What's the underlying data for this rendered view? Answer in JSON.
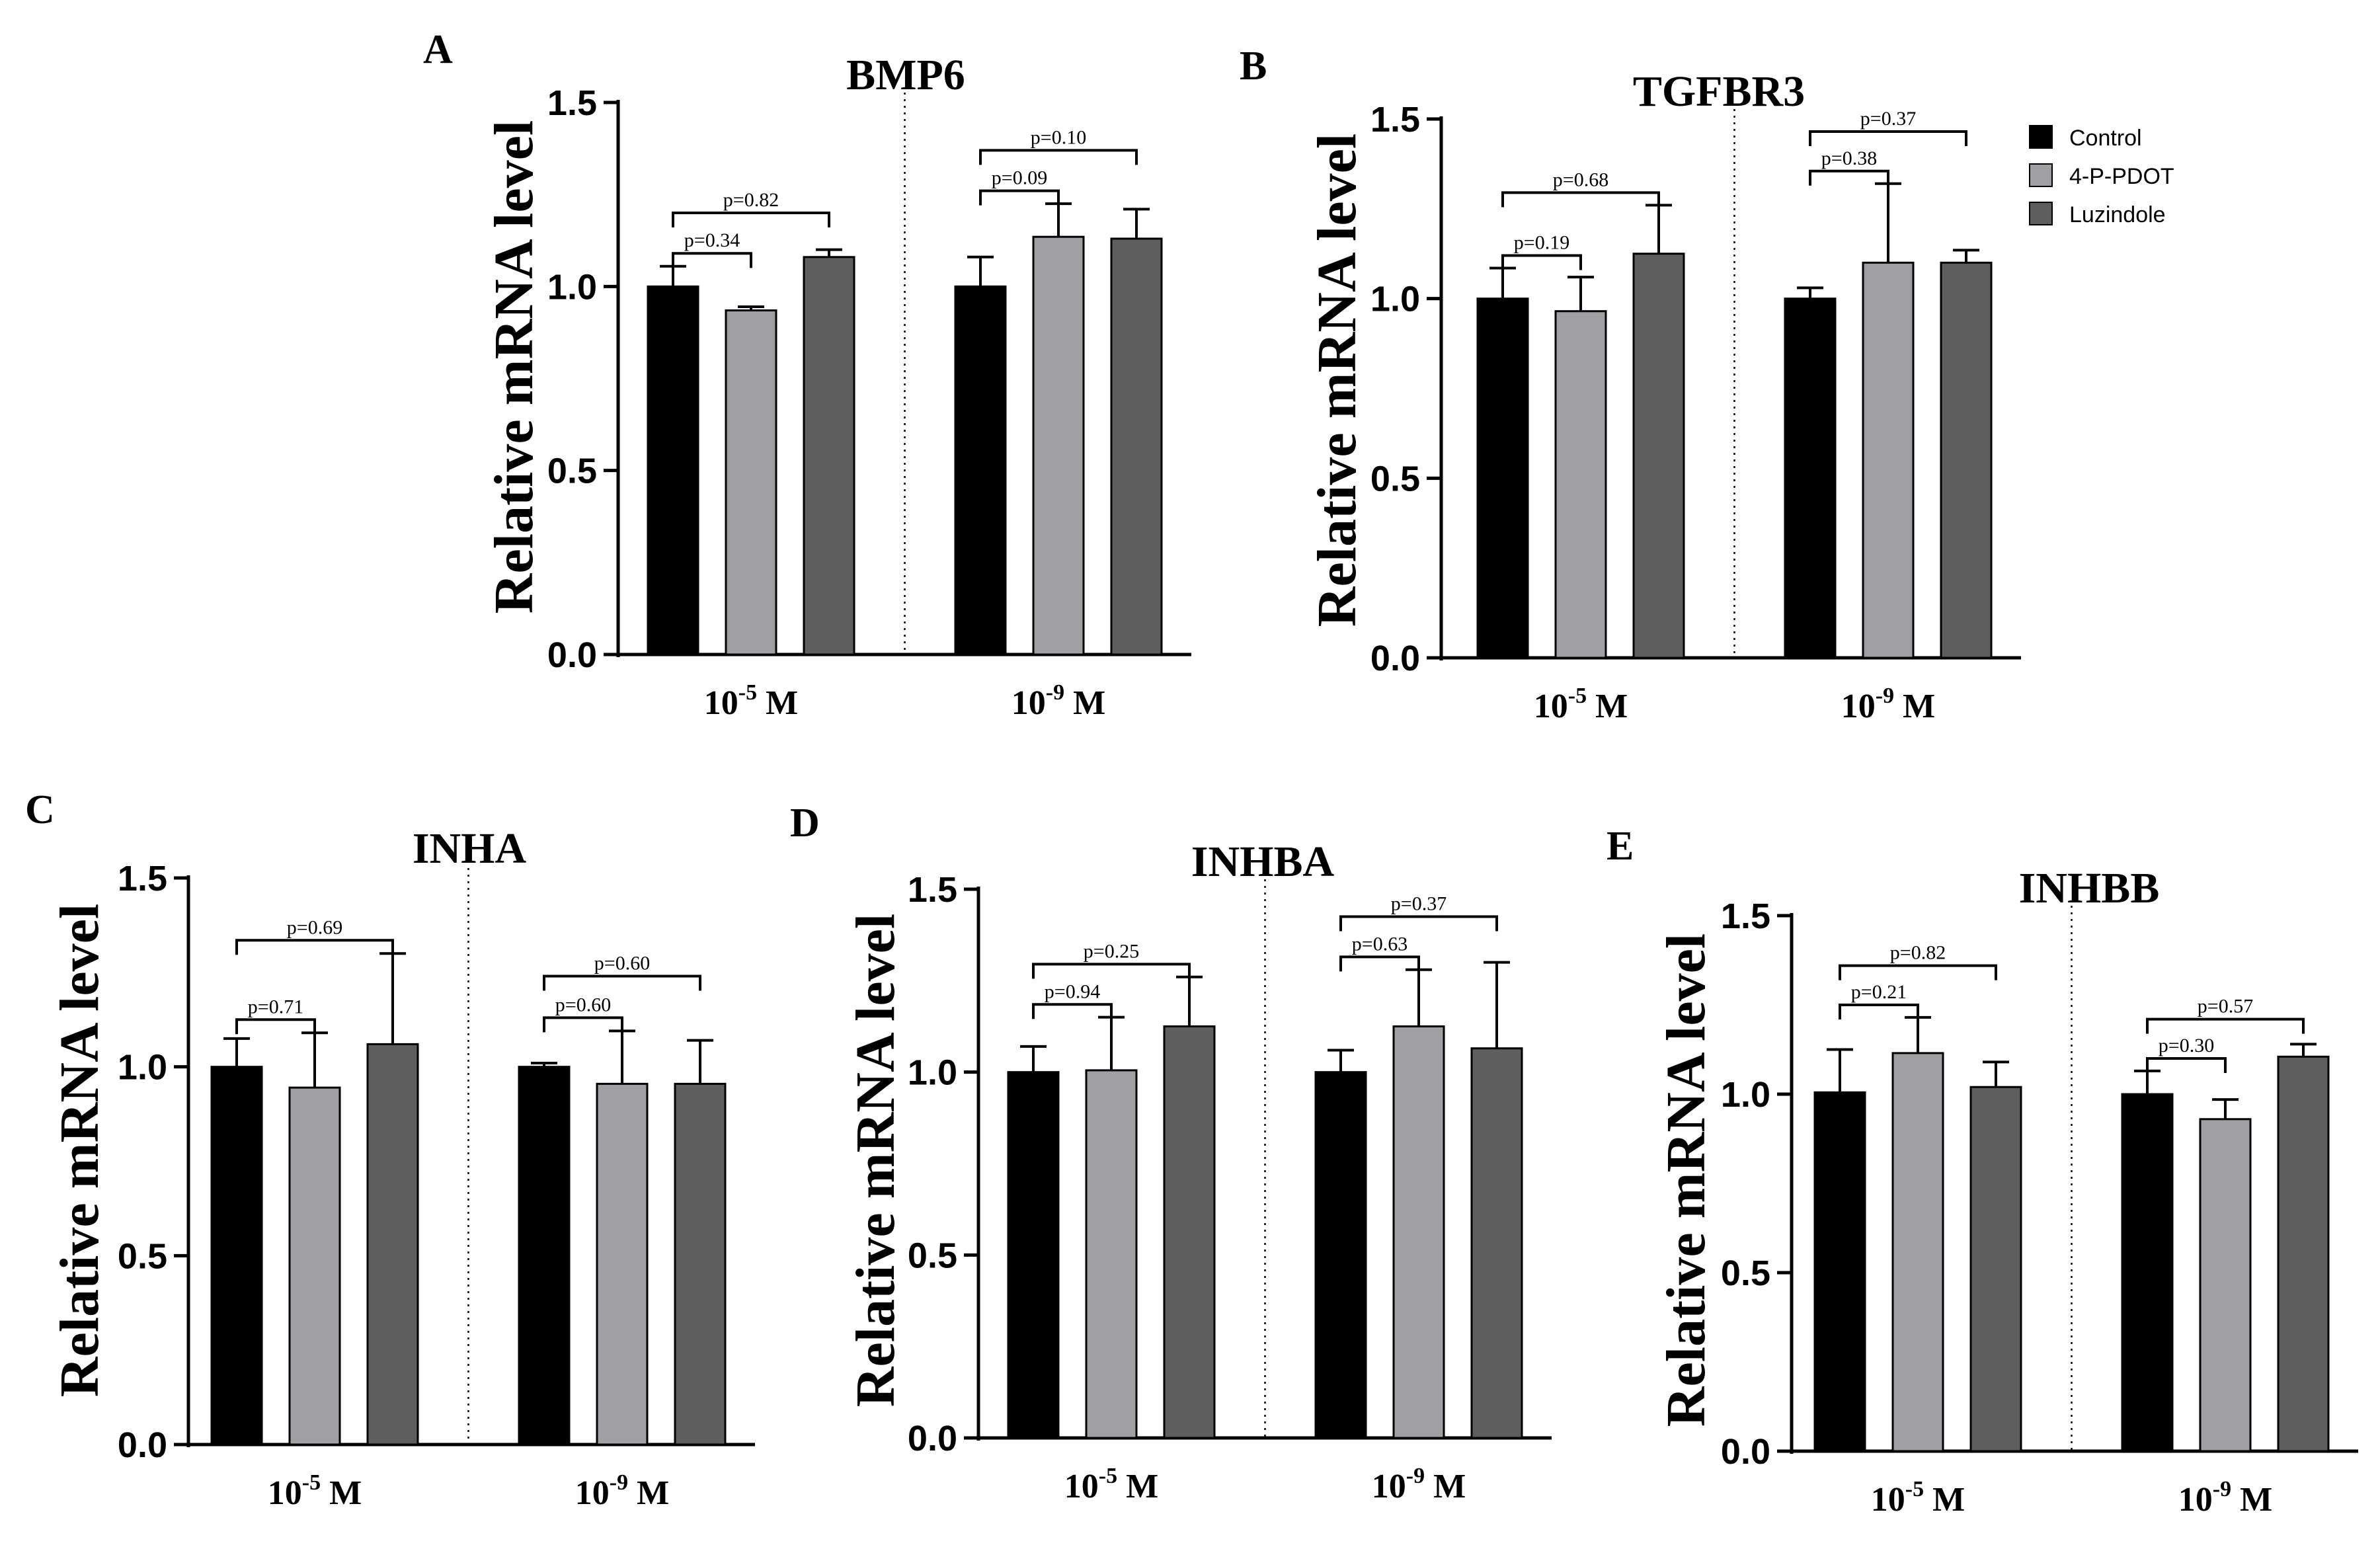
{
  "legend": [
    {
      "name": "Control",
      "color": "#000000"
    },
    {
      "name": "4-P-PDOT",
      "color": "#a0a0a4"
    },
    {
      "name": "Luzindole",
      "color": "#5e5e5e"
    }
  ],
  "chart_data": [
    {
      "panel": "A",
      "type": "bar",
      "title": "BMP6",
      "ylabel": "Relative mRNA level",
      "ylim": [
        0,
        1.5
      ],
      "yticks": [
        "0.0",
        "0.5",
        "1.0",
        "1.5"
      ],
      "categories": [
        {
          "base": "10",
          "exp": "-5",
          "unit": " M"
        },
        {
          "base": "10",
          "exp": "-9",
          "unit": " M"
        }
      ],
      "series": [
        {
          "name": "Control",
          "values": [
            1.0,
            1.0
          ],
          "errors": [
            0.055,
            0.08
          ]
        },
        {
          "name": "4-P-PDOT",
          "values": [
            0.935,
            1.135
          ],
          "errors": [
            0.01,
            0.09
          ]
        },
        {
          "name": "Luzindole",
          "values": [
            1.08,
            1.13
          ],
          "errors": [
            0.02,
            0.08
          ]
        }
      ],
      "comparisons": [
        {
          "group": 0,
          "from": 0,
          "to": 1,
          "label": "p=0.34"
        },
        {
          "group": 0,
          "from": 0,
          "to": 2,
          "label": "p=0.82"
        },
        {
          "group": 1,
          "from": 0,
          "to": 1,
          "label": "p=0.09"
        },
        {
          "group": 1,
          "from": 0,
          "to": 2,
          "label": "p=0.10"
        }
      ]
    },
    {
      "panel": "B",
      "type": "bar",
      "title": "TGFBR3",
      "ylabel": "Relative mRNA level",
      "ylim": [
        0,
        1.5
      ],
      "yticks": [
        "0.0",
        "0.5",
        "1.0",
        "1.5"
      ],
      "categories": [
        {
          "base": "10",
          "exp": "-5",
          "unit": " M"
        },
        {
          "base": "10",
          "exp": "-9",
          "unit": " M"
        }
      ],
      "series": [
        {
          "name": "Control",
          "values": [
            1.0,
            1.0
          ],
          "errors": [
            0.085,
            0.03
          ]
        },
        {
          "name": "4-P-PDOT",
          "values": [
            0.965,
            1.1
          ],
          "errors": [
            0.095,
            0.22
          ]
        },
        {
          "name": "Luzindole",
          "values": [
            1.125,
            1.1
          ],
          "errors": [
            0.135,
            0.035
          ]
        }
      ],
      "comparisons": [
        {
          "group": 0,
          "from": 0,
          "to": 1,
          "label": "p=0.19"
        },
        {
          "group": 0,
          "from": 0,
          "to": 2,
          "label": "p=0.68"
        },
        {
          "group": 1,
          "from": 0,
          "to": 1,
          "label": "p=0.38"
        },
        {
          "group": 1,
          "from": 0,
          "to": 2,
          "label": "p=0.37"
        }
      ]
    },
    {
      "panel": "C",
      "type": "bar",
      "title": "INHA",
      "ylabel": "Relative mRNA level",
      "ylim": [
        0,
        1.5
      ],
      "yticks": [
        "0.0",
        "0.5",
        "1.0",
        "1.5"
      ],
      "categories": [
        {
          "base": "10",
          "exp": "-5",
          "unit": " M"
        },
        {
          "base": "10",
          "exp": "-9",
          "unit": " M"
        }
      ],
      "series": [
        {
          "name": "Control",
          "values": [
            1.0,
            1.0
          ],
          "errors": [
            0.075,
            0.01
          ]
        },
        {
          "name": "4-P-PDOT",
          "values": [
            0.945,
            0.955
          ],
          "errors": [
            0.145,
            0.14
          ]
        },
        {
          "name": "Luzindole",
          "values": [
            1.06,
            0.955
          ],
          "errors": [
            0.24,
            0.115
          ]
        }
      ],
      "comparisons": [
        {
          "group": 0,
          "from": 0,
          "to": 1,
          "label": "p=0.71"
        },
        {
          "group": 0,
          "from": 0,
          "to": 2,
          "label": "p=0.69"
        },
        {
          "group": 1,
          "from": 0,
          "to": 1,
          "label": "p=0.60"
        },
        {
          "group": 1,
          "from": 0,
          "to": 2,
          "label": "p=0.60"
        }
      ]
    },
    {
      "panel": "D",
      "type": "bar",
      "title": "INHBA",
      "ylabel": "Relative mRNA level",
      "ylim": [
        0,
        1.5
      ],
      "yticks": [
        "0.0",
        "0.5",
        "1.0",
        "1.5"
      ],
      "categories": [
        {
          "base": "10",
          "exp": "-5",
          "unit": " M"
        },
        {
          "base": "10",
          "exp": "-9",
          "unit": " M"
        }
      ],
      "series": [
        {
          "name": "Control",
          "values": [
            1.0,
            1.0
          ],
          "errors": [
            0.07,
            0.06
          ]
        },
        {
          "name": "4-P-PDOT",
          "values": [
            1.005,
            1.125
          ],
          "errors": [
            0.145,
            0.155
          ]
        },
        {
          "name": "Luzindole",
          "values": [
            1.125,
            1.065
          ],
          "errors": [
            0.135,
            0.235
          ]
        }
      ],
      "comparisons": [
        {
          "group": 0,
          "from": 0,
          "to": 1,
          "label": "p=0.94"
        },
        {
          "group": 0,
          "from": 0,
          "to": 2,
          "label": "p=0.25"
        },
        {
          "group": 1,
          "from": 0,
          "to": 1,
          "label": "p=0.63"
        },
        {
          "group": 1,
          "from": 0,
          "to": 2,
          "label": "p=0.37"
        }
      ]
    },
    {
      "panel": "E",
      "type": "bar",
      "title": "INHBB",
      "ylabel": "Relative mRNA level",
      "ylim": [
        0,
        1.5
      ],
      "yticks": [
        "0.0",
        "0.5",
        "1.0",
        "1.5"
      ],
      "categories": [
        {
          "base": "10",
          "exp": "-5",
          "unit": " M"
        },
        {
          "base": "10",
          "exp": "-9",
          "unit": " M"
        }
      ],
      "series": [
        {
          "name": "Control",
          "values": [
            1.005,
            1.0
          ],
          "errors": [
            0.12,
            0.065
          ]
        },
        {
          "name": "4-P-PDOT",
          "values": [
            1.115,
            0.93
          ],
          "errors": [
            0.1,
            0.055
          ]
        },
        {
          "name": "Luzindole",
          "values": [
            1.02,
            1.105
          ],
          "errors": [
            0.07,
            0.035
          ]
        }
      ],
      "comparisons": [
        {
          "group": 0,
          "from": 0,
          "to": 1,
          "label": "p=0.21"
        },
        {
          "group": 0,
          "from": 0,
          "to": 2,
          "label": "p=0.82"
        },
        {
          "group": 1,
          "from": 0,
          "to": 1,
          "label": "p=0.30"
        },
        {
          "group": 1,
          "from": 0,
          "to": 2,
          "label": "p=0.57"
        }
      ]
    }
  ]
}
